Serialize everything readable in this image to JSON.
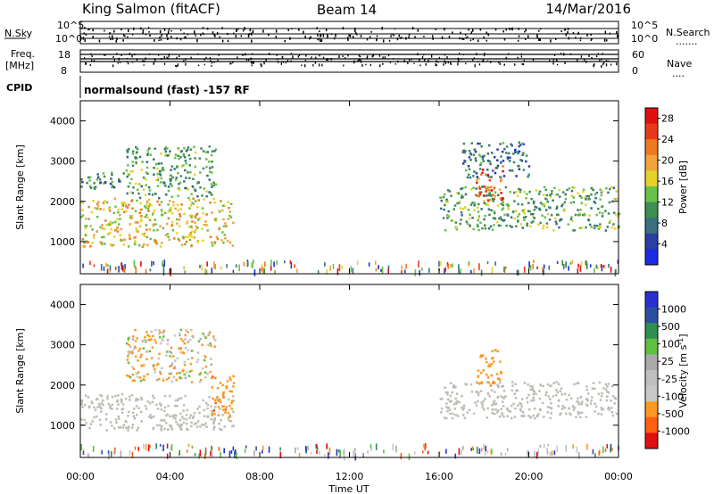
{
  "header": {
    "station": "King Salmon (fitACF)",
    "beam": "Beam 14",
    "date": "14/Mar/2016"
  },
  "noise_panel": {
    "left_label": "N.Sky",
    "right_label": "N.Search",
    "right_marker": ".......",
    "y_top": "10^5",
    "y_bottom": "10^0"
  },
  "freq_panel": {
    "left_label_1": "Freq.",
    "left_label_2": "[MHz]",
    "left_ticks": [
      "18",
      "8"
    ],
    "right_label": "Nave",
    "right_marker": "....",
    "right_ticks": [
      "60",
      "0"
    ]
  },
  "cpid": {
    "label": "CPID",
    "text": "normalsound (fast) -157 RF"
  },
  "colors": {
    "power": [
      "#1a2be0",
      "#2a3fa0",
      "#3a7080",
      "#3e8f52",
      "#66c24a",
      "#e6d22a",
      "#f0a43a",
      "#ee7a20",
      "#e83a18",
      "#e01010"
    ],
    "velocity": [
      "#e01010",
      "#ff6010",
      "#ff9820",
      "#c8c8c8",
      "#bfbfbf",
      "#aaaaaa",
      "#60c040",
      "#2e9050",
      "#2a4fa0",
      "#2a2fd0"
    ],
    "ground_scatter": "#bdbdb5"
  },
  "chart_data": [
    {
      "type": "heatmap",
      "title": "",
      "xlabel": "Time UT",
      "ylabel": "Slant Range [km]",
      "xlim": [
        0,
        24
      ],
      "ylim": [
        200,
        4500
      ],
      "x_ticks": [
        "00:00",
        "04:00",
        "08:00",
        "12:00",
        "16:00",
        "20:00",
        "00:00"
      ],
      "y_ticks": [
        "1000",
        "2000",
        "3000",
        "4000"
      ],
      "colorbar": {
        "label": "Power [dB]",
        "ticks": [
          "4",
          "8",
          "12",
          "16",
          "20",
          "24",
          "28"
        ],
        "range": [
          0,
          30
        ]
      },
      "regions": [
        {
          "t0": 0.0,
          "t1": 6.8,
          "r0": 900,
          "r1": 2100,
          "level": 16
        },
        {
          "t0": 0.0,
          "t1": 2.0,
          "r0": 2300,
          "r1": 2750,
          "level": 8
        },
        {
          "t0": 2.0,
          "t1": 6.0,
          "r0": 2100,
          "r1": 3400,
          "level": 10
        },
        {
          "t0": 16.0,
          "t1": 24.0,
          "r0": 1300,
          "r1": 2400,
          "level": 10
        },
        {
          "t0": 17.6,
          "t1": 18.8,
          "r0": 2000,
          "r1": 2900,
          "level": 22
        },
        {
          "t0": 17.0,
          "t1": 20.0,
          "r0": 2600,
          "r1": 3500,
          "level": 6
        }
      ]
    },
    {
      "type": "heatmap",
      "title": "",
      "xlabel": "Time UT",
      "ylabel": "Slant Range [km]",
      "xlim": [
        0,
        24
      ],
      "ylim": [
        200,
        4500
      ],
      "x_ticks": [
        "00:00",
        "04:00",
        "08:00",
        "12:00",
        "16:00",
        "20:00",
        "00:00"
      ],
      "y_ticks": [
        "1000",
        "2000",
        "3000",
        "4000"
      ],
      "colorbar": {
        "label": "Velocity [m s^-1]",
        "ticks": [
          "1000",
          "500",
          "100",
          "25",
          "-25",
          "-100",
          "-500",
          "-1000"
        ],
        "range": [
          -1000,
          1000
        ]
      },
      "regions": [
        {
          "t0": 0.0,
          "t1": 6.8,
          "r0": 900,
          "r1": 1800,
          "level": 0
        },
        {
          "t0": 5.8,
          "t1": 6.8,
          "r0": 1200,
          "r1": 2300,
          "level": -400
        },
        {
          "t0": 2.0,
          "t1": 6.0,
          "r0": 2100,
          "r1": 3400,
          "level": -80
        },
        {
          "t0": 16.0,
          "t1": 24.0,
          "r0": 1200,
          "r1": 2100,
          "level": 0
        },
        {
          "t0": 17.6,
          "t1": 18.8,
          "r0": 2000,
          "r1": 2900,
          "level": -300
        }
      ]
    }
  ]
}
